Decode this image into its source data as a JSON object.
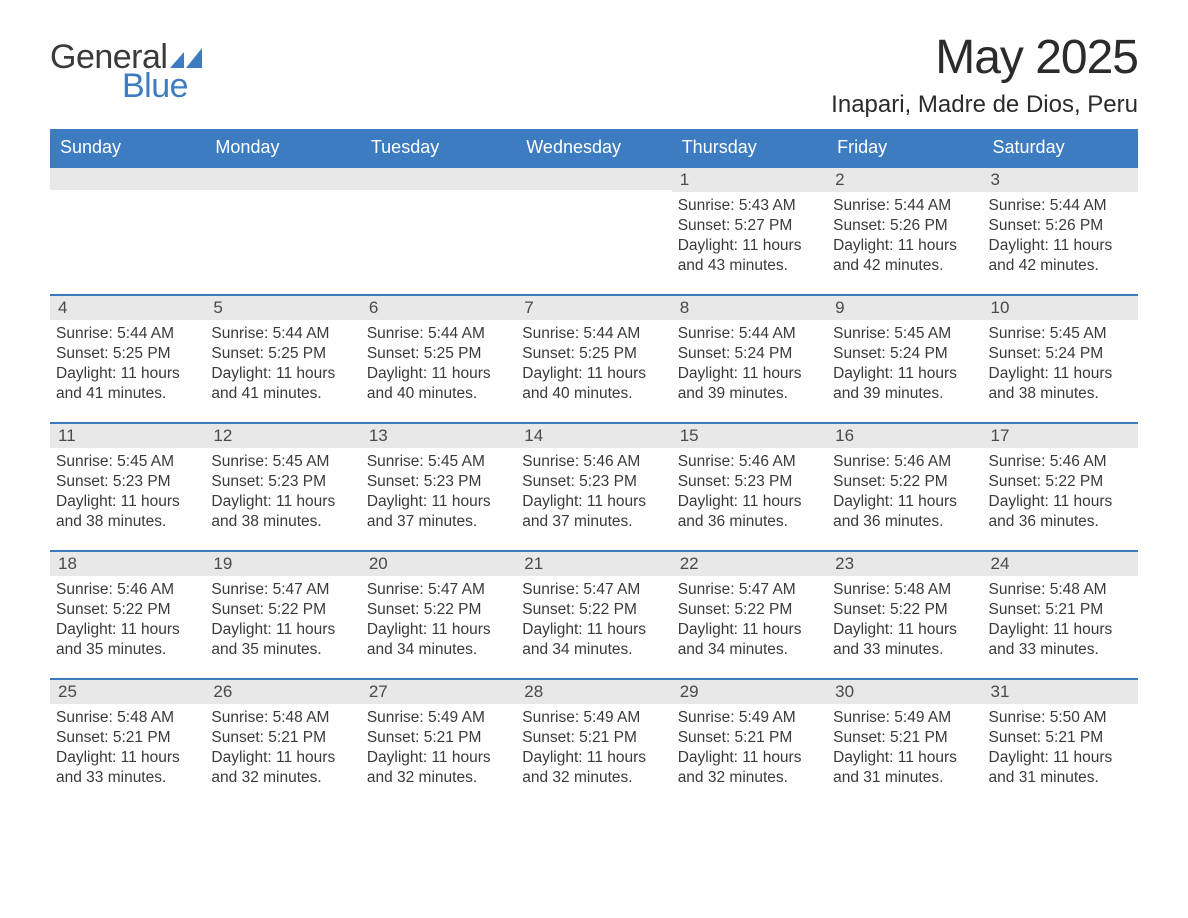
{
  "logo": {
    "text_general": "General",
    "text_blue": "Blue",
    "icon_color": "#3d7cc0"
  },
  "title": "May 2025",
  "location": "Inapari, Madre de Dios, Peru",
  "colors": {
    "header_bg": "#3d7cc0",
    "header_text": "#ffffff",
    "daynum_bg": "#e8e8e8",
    "daynum_border": "#3d7cc0",
    "body_text": "#3a3a3a",
    "page_bg": "#ffffff"
  },
  "weekdays": [
    "Sunday",
    "Monday",
    "Tuesday",
    "Wednesday",
    "Thursday",
    "Friday",
    "Saturday"
  ],
  "weeks": [
    [
      null,
      null,
      null,
      null,
      {
        "n": "1",
        "sunrise": "5:43 AM",
        "sunset": "5:27 PM",
        "dl1": "Daylight: 11 hours",
        "dl2": "and 43 minutes."
      },
      {
        "n": "2",
        "sunrise": "5:44 AM",
        "sunset": "5:26 PM",
        "dl1": "Daylight: 11 hours",
        "dl2": "and 42 minutes."
      },
      {
        "n": "3",
        "sunrise": "5:44 AM",
        "sunset": "5:26 PM",
        "dl1": "Daylight: 11 hours",
        "dl2": "and 42 minutes."
      }
    ],
    [
      {
        "n": "4",
        "sunrise": "5:44 AM",
        "sunset": "5:25 PM",
        "dl1": "Daylight: 11 hours",
        "dl2": "and 41 minutes."
      },
      {
        "n": "5",
        "sunrise": "5:44 AM",
        "sunset": "5:25 PM",
        "dl1": "Daylight: 11 hours",
        "dl2": "and 41 minutes."
      },
      {
        "n": "6",
        "sunrise": "5:44 AM",
        "sunset": "5:25 PM",
        "dl1": "Daylight: 11 hours",
        "dl2": "and 40 minutes."
      },
      {
        "n": "7",
        "sunrise": "5:44 AM",
        "sunset": "5:25 PM",
        "dl1": "Daylight: 11 hours",
        "dl2": "and 40 minutes."
      },
      {
        "n": "8",
        "sunrise": "5:44 AM",
        "sunset": "5:24 PM",
        "dl1": "Daylight: 11 hours",
        "dl2": "and 39 minutes."
      },
      {
        "n": "9",
        "sunrise": "5:45 AM",
        "sunset": "5:24 PM",
        "dl1": "Daylight: 11 hours",
        "dl2": "and 39 minutes."
      },
      {
        "n": "10",
        "sunrise": "5:45 AM",
        "sunset": "5:24 PM",
        "dl1": "Daylight: 11 hours",
        "dl2": "and 38 minutes."
      }
    ],
    [
      {
        "n": "11",
        "sunrise": "5:45 AM",
        "sunset": "5:23 PM",
        "dl1": "Daylight: 11 hours",
        "dl2": "and 38 minutes."
      },
      {
        "n": "12",
        "sunrise": "5:45 AM",
        "sunset": "5:23 PM",
        "dl1": "Daylight: 11 hours",
        "dl2": "and 38 minutes."
      },
      {
        "n": "13",
        "sunrise": "5:45 AM",
        "sunset": "5:23 PM",
        "dl1": "Daylight: 11 hours",
        "dl2": "and 37 minutes."
      },
      {
        "n": "14",
        "sunrise": "5:46 AM",
        "sunset": "5:23 PM",
        "dl1": "Daylight: 11 hours",
        "dl2": "and 37 minutes."
      },
      {
        "n": "15",
        "sunrise": "5:46 AM",
        "sunset": "5:23 PM",
        "dl1": "Daylight: 11 hours",
        "dl2": "and 36 minutes."
      },
      {
        "n": "16",
        "sunrise": "5:46 AM",
        "sunset": "5:22 PM",
        "dl1": "Daylight: 11 hours",
        "dl2": "and 36 minutes."
      },
      {
        "n": "17",
        "sunrise": "5:46 AM",
        "sunset": "5:22 PM",
        "dl1": "Daylight: 11 hours",
        "dl2": "and 36 minutes."
      }
    ],
    [
      {
        "n": "18",
        "sunrise": "5:46 AM",
        "sunset": "5:22 PM",
        "dl1": "Daylight: 11 hours",
        "dl2": "and 35 minutes."
      },
      {
        "n": "19",
        "sunrise": "5:47 AM",
        "sunset": "5:22 PM",
        "dl1": "Daylight: 11 hours",
        "dl2": "and 35 minutes."
      },
      {
        "n": "20",
        "sunrise": "5:47 AM",
        "sunset": "5:22 PM",
        "dl1": "Daylight: 11 hours",
        "dl2": "and 34 minutes."
      },
      {
        "n": "21",
        "sunrise": "5:47 AM",
        "sunset": "5:22 PM",
        "dl1": "Daylight: 11 hours",
        "dl2": "and 34 minutes."
      },
      {
        "n": "22",
        "sunrise": "5:47 AM",
        "sunset": "5:22 PM",
        "dl1": "Daylight: 11 hours",
        "dl2": "and 34 minutes."
      },
      {
        "n": "23",
        "sunrise": "5:48 AM",
        "sunset": "5:22 PM",
        "dl1": "Daylight: 11 hours",
        "dl2": "and 33 minutes."
      },
      {
        "n": "24",
        "sunrise": "5:48 AM",
        "sunset": "5:21 PM",
        "dl1": "Daylight: 11 hours",
        "dl2": "and 33 minutes."
      }
    ],
    [
      {
        "n": "25",
        "sunrise": "5:48 AM",
        "sunset": "5:21 PM",
        "dl1": "Daylight: 11 hours",
        "dl2": "and 33 minutes."
      },
      {
        "n": "26",
        "sunrise": "5:48 AM",
        "sunset": "5:21 PM",
        "dl1": "Daylight: 11 hours",
        "dl2": "and 32 minutes."
      },
      {
        "n": "27",
        "sunrise": "5:49 AM",
        "sunset": "5:21 PM",
        "dl1": "Daylight: 11 hours",
        "dl2": "and 32 minutes."
      },
      {
        "n": "28",
        "sunrise": "5:49 AM",
        "sunset": "5:21 PM",
        "dl1": "Daylight: 11 hours",
        "dl2": "and 32 minutes."
      },
      {
        "n": "29",
        "sunrise": "5:49 AM",
        "sunset": "5:21 PM",
        "dl1": "Daylight: 11 hours",
        "dl2": "and 32 minutes."
      },
      {
        "n": "30",
        "sunrise": "5:49 AM",
        "sunset": "5:21 PM",
        "dl1": "Daylight: 11 hours",
        "dl2": "and 31 minutes."
      },
      {
        "n": "31",
        "sunrise": "5:50 AM",
        "sunset": "5:21 PM",
        "dl1": "Daylight: 11 hours",
        "dl2": "and 31 minutes."
      }
    ]
  ],
  "labels": {
    "sunrise_prefix": "Sunrise: ",
    "sunset_prefix": "Sunset: "
  }
}
